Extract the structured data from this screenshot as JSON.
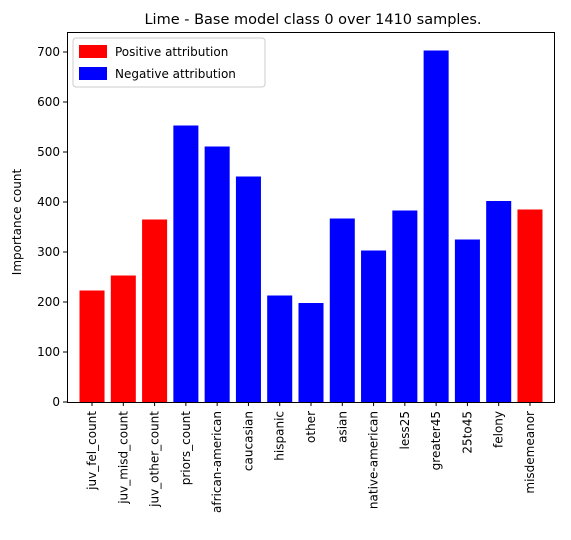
{
  "chart_data": {
    "type": "bar",
    "title": "Lime - Base model class 0 over 1410 samples.",
    "xlabel": "",
    "ylabel": "Importance count",
    "ylim": [
      0,
      740
    ],
    "yticks": [
      0,
      100,
      200,
      300,
      400,
      500,
      600,
      700
    ],
    "grid": false,
    "legend_position": "top-left",
    "legend": [
      {
        "label": "Positive attribution",
        "color": "#ff0000"
      },
      {
        "label": "Negative attribution",
        "color": "#0000ff"
      }
    ],
    "categories": [
      "juv_fel_count",
      "juv_misd_count",
      "juv_other_count",
      "priors_count",
      "african-american",
      "caucasian",
      "hispanic",
      "other",
      "asian",
      "native-american",
      "less25",
      "greater45",
      "25to45",
      "felony",
      "misdemeanor"
    ],
    "values": [
      223,
      253,
      365,
      553,
      511,
      451,
      213,
      198,
      367,
      303,
      383,
      703,
      325,
      402,
      385
    ],
    "attribution": [
      "positive",
      "positive",
      "positive",
      "negative",
      "negative",
      "negative",
      "negative",
      "negative",
      "negative",
      "negative",
      "negative",
      "negative",
      "negative",
      "negative",
      "positive"
    ]
  }
}
